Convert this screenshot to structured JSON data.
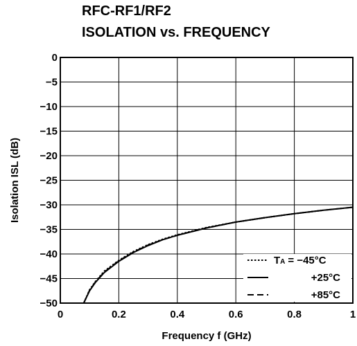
{
  "chart_data": {
    "type": "line",
    "title_line1": "RFC-RF1/RF2",
    "title_line2": "ISOLATION vs. FREQUENCY",
    "xlabel": "Frequency  f (GHz)",
    "ylabel": "Isolation  ISL (dB)",
    "xlim": [
      0,
      1
    ],
    "ylim": [
      -50,
      0
    ],
    "x_ticks": [
      "0",
      "0.2",
      "0.4",
      "0.6",
      "0.8",
      "1"
    ],
    "y_ticks": [
      "0",
      "−5",
      "−10",
      "−15",
      "−20",
      "−25",
      "−30",
      "−35",
      "−40",
      "−45",
      "−50"
    ],
    "grid": true,
    "legend_position": "bottom-right",
    "legend": {
      "ta_prefix": "T",
      "ta_sub": "A",
      "entries": [
        "= −45°C",
        "+25°C",
        "+85°C"
      ]
    },
    "series": [
      {
        "style": "dotted",
        "x": [
          0.08,
          0.1,
          0.12,
          0.15,
          0.2,
          0.25,
          0.3,
          0.35,
          0.4,
          0.5,
          0.6,
          0.7,
          0.8,
          0.9,
          1.0
        ],
        "y": [
          -50.0,
          -47.3,
          -45.6,
          -43.5,
          -41.3,
          -39.5,
          -38.1,
          -37.0,
          -36.1,
          -34.6,
          -33.5,
          -32.6,
          -31.8,
          -31.1,
          -30.5
        ]
      },
      {
        "style": "solid",
        "x": [
          0.08,
          0.1,
          0.12,
          0.15,
          0.2,
          0.25,
          0.3,
          0.35,
          0.4,
          0.5,
          0.6,
          0.7,
          0.8,
          0.9,
          1.0
        ],
        "y": [
          -50.0,
          -47.5,
          -45.8,
          -43.8,
          -41.5,
          -39.7,
          -38.3,
          -37.1,
          -36.2,
          -34.7,
          -33.5,
          -32.6,
          -31.8,
          -31.1,
          -30.5
        ]
      },
      {
        "style": "dashed",
        "x": [
          0.08,
          0.1,
          0.12,
          0.15,
          0.2,
          0.25,
          0.3,
          0.35,
          0.4,
          0.5,
          0.6,
          0.7,
          0.8,
          0.9,
          1.0
        ],
        "y": [
          -50.0,
          -47.4,
          -45.7,
          -43.7,
          -41.4,
          -39.6,
          -38.2,
          -37.1,
          -36.2,
          -34.7,
          -33.5,
          -32.6,
          -31.8,
          -31.1,
          -30.5
        ]
      }
    ]
  }
}
